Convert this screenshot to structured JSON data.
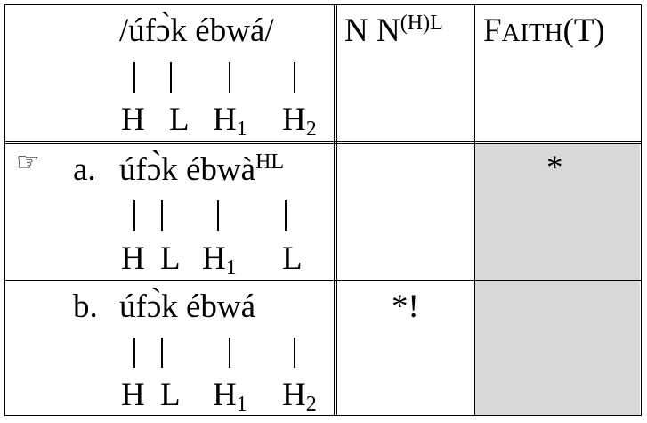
{
  "header": {
    "input": "/úfɔ̀k  ébwá/",
    "tones": [
      "H",
      "L",
      "H",
      "H"
    ],
    "tone_subs": [
      "",
      "",
      "1",
      "2"
    ],
    "col1_base": "N N",
    "col1_sup": "(H)L",
    "col2_first": "F",
    "col2_small": "AITH",
    "col2_rest": "(T)"
  },
  "candidates": [
    {
      "pointer": "☞",
      "label": "a.",
      "form": "úfɔ̀k  ébwà",
      "form_sup": "HL",
      "tones": [
        "H",
        "L",
        "H",
        "L"
      ],
      "tone_subs": [
        "",
        "",
        "1",
        ""
      ],
      "col1": "",
      "col2": "*"
    },
    {
      "pointer": "",
      "label": "b.",
      "form": "úfɔ̀k  ébwá",
      "form_sup": "",
      "tones": [
        "H",
        "L",
        "H",
        "H"
      ],
      "tone_subs": [
        "",
        "",
        "1",
        "2"
      ],
      "col1": "*!",
      "col2": ""
    }
  ]
}
